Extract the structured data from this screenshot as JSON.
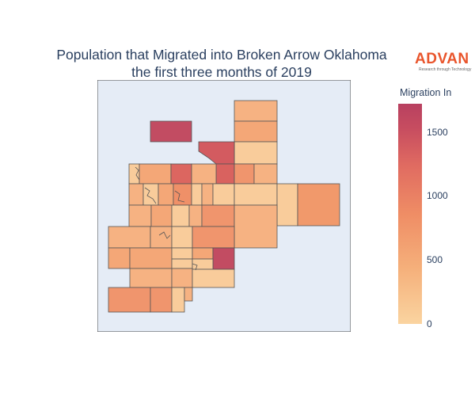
{
  "title_line1": "Population that Migrated into Broken Arrow Oklahoma",
  "title_line2": "the first three months of 2019",
  "logo": {
    "name": "ADVAN",
    "tagline": "Research through Technology"
  },
  "colorbar": {
    "title": "Migration In",
    "ticks": [
      {
        "value": 0,
        "label": "0"
      },
      {
        "value": 500,
        "label": "500"
      },
      {
        "value": 1000,
        "label": "1000"
      },
      {
        "value": 1500,
        "label": "1500"
      }
    ],
    "min": 0,
    "max": 1720,
    "colorscale": [
      "#fad4a0",
      "#f5b07b",
      "#ef8d65",
      "#e06b61",
      "#c84e60",
      "#b84060"
    ]
  },
  "map": {
    "background": "#e5ecf6",
    "border": "#444444"
  }
}
